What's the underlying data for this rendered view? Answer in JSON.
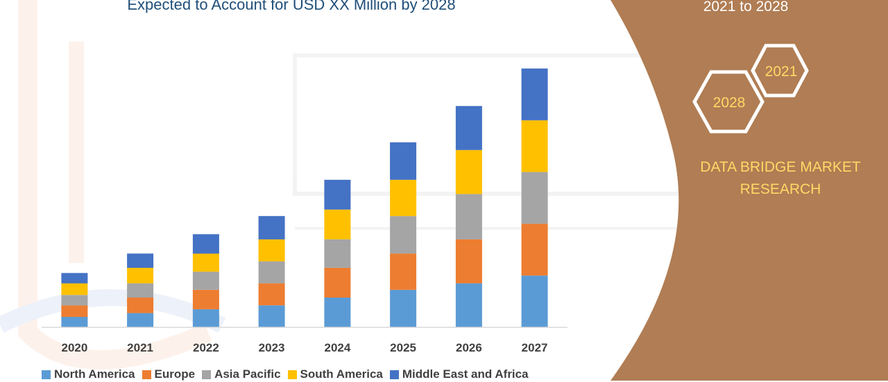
{
  "header": {
    "title": "Expected to Account for USD XX Million by 2028"
  },
  "panel": {
    "period": "2021 to 2028",
    "hex_top_label": "2021",
    "hex_bottom_label": "2028",
    "brand": "DATA BRIDGE MARKET RESEARCH",
    "bg_color": "#b07d54",
    "accent_color": "#ffd966"
  },
  "chart_data": {
    "type": "bar",
    "stacked": true,
    "title": "Expected to Account for USD XX Million by 2028",
    "xlabel": "",
    "ylabel": "",
    "ylim": [
      0,
      100
    ],
    "grid": false,
    "legend_position": "bottom",
    "categories": [
      "2020",
      "2021",
      "2022",
      "2023",
      "2024",
      "2025",
      "2026",
      "2027"
    ],
    "series": [
      {
        "name": "North America",
        "color": "#5b9bd5",
        "values": [
          4,
          5.5,
          7,
          8.5,
          11.5,
          14.5,
          17,
          20
        ]
      },
      {
        "name": "Europe",
        "color": "#ed7d31",
        "values": [
          4.5,
          6,
          7.5,
          8.5,
          11.5,
          14,
          17,
          20
        ]
      },
      {
        "name": "Asia Pacific",
        "color": "#a5a5a5",
        "values": [
          4,
          5.5,
          7,
          8.5,
          11,
          14.5,
          17.5,
          20
        ]
      },
      {
        "name": "South America",
        "color": "#ffc000",
        "values": [
          4.5,
          6,
          7,
          8.5,
          11.5,
          14,
          17,
          20
        ]
      },
      {
        "name": "Middle East and Africa",
        "color": "#4472c4",
        "values": [
          4,
          5.5,
          7.5,
          9,
          11.5,
          14.5,
          17,
          20
        ]
      }
    ]
  }
}
